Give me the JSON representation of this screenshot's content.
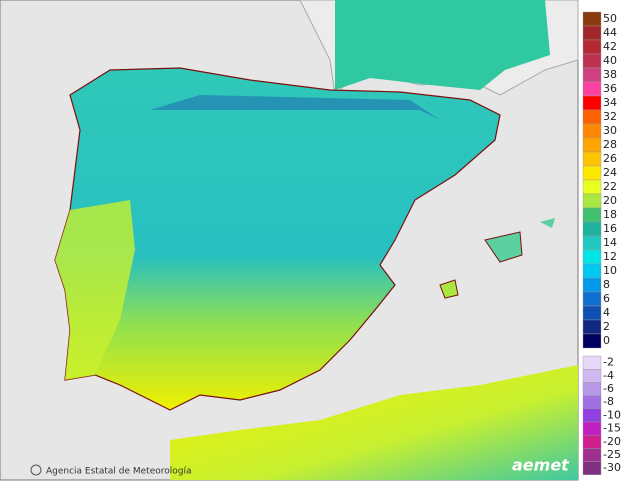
{
  "credit": "Agencia Estatal de Meteorología",
  "logo": "aemet",
  "legend": {
    "items": [
      {
        "label": 50,
        "color": "#8b3a0f"
      },
      {
        "label": 44,
        "color": "#a0282a"
      },
      {
        "label": 42,
        "color": "#b42a30"
      },
      {
        "label": 40,
        "color": "#c03050"
      },
      {
        "label": 38,
        "color": "#d04080"
      },
      {
        "label": 36,
        "color": "#ff40a0"
      },
      {
        "label": 34,
        "color": "#ff0000"
      },
      {
        "label": 32,
        "color": "#ff6000"
      },
      {
        "label": 30,
        "color": "#ff8800"
      },
      {
        "label": 28,
        "color": "#ffa500"
      },
      {
        "label": 26,
        "color": "#ffc400"
      },
      {
        "label": 24,
        "color": "#ffe800"
      },
      {
        "label": 22,
        "color": "#e8ff20"
      },
      {
        "label": 20,
        "color": "#a8e840"
      },
      {
        "label": 18,
        "color": "#40c070"
      },
      {
        "label": 16,
        "color": "#20b0a0"
      },
      {
        "label": 14,
        "color": "#20c8c0"
      },
      {
        "label": 12,
        "color": "#00e4e4"
      },
      {
        "label": 10,
        "color": "#00c8f0"
      },
      {
        "label": 8,
        "color": "#0098e8"
      },
      {
        "label": 6,
        "color": "#1070d0"
      },
      {
        "label": 4,
        "color": "#1050b0"
      },
      {
        "label": 2,
        "color": "#102880"
      },
      {
        "label": 0,
        "color": "#000060"
      },
      {
        "label": -2,
        "color": "#e8d8f8"
      },
      {
        "label": -4,
        "color": "#d0b8f0"
      },
      {
        "label": -6,
        "color": "#b898e8"
      },
      {
        "label": -8,
        "color": "#a070e0"
      },
      {
        "label": -10,
        "color": "#9040e0"
      },
      {
        "label": -15,
        "color": "#c020c0"
      },
      {
        "label": -20,
        "color": "#d02090"
      },
      {
        "label": -25,
        "color": "#a03090"
      },
      {
        "label": -30,
        "color": "#803080"
      }
    ]
  }
}
